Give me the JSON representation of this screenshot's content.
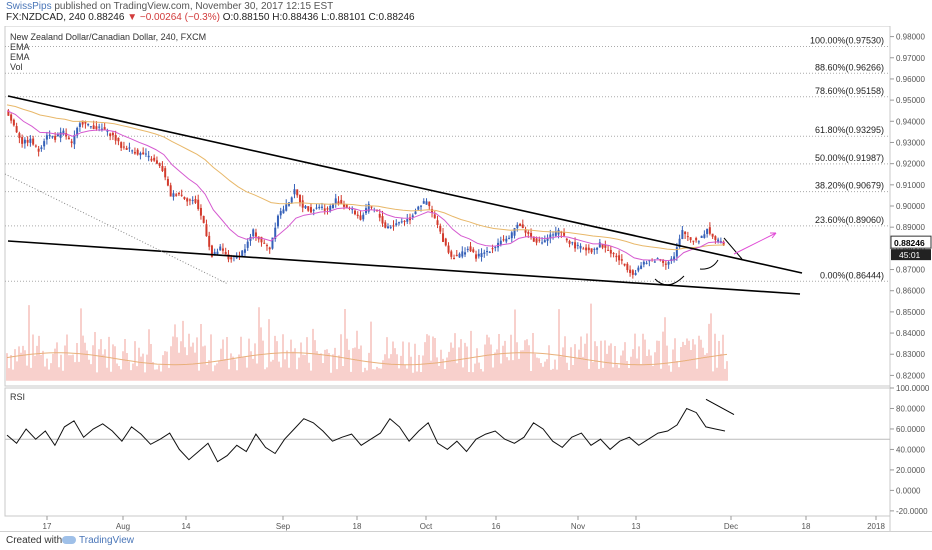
{
  "header": {
    "author": "SwissPips",
    "published": "published on TradingView.com, November 30, 2017 12:15 EST",
    "symbol": "FX:NZDCAD, 240",
    "last": "0.88246",
    "change": "−0.00264 (−0.3%)",
    "open": "O:0.88150",
    "high": "H:0.88436",
    "low": "L:0.88101",
    "close": "C:0.88246",
    "change_color": "#d23b3b"
  },
  "legend": {
    "title": "New Zealand Dollar/Canadian Dollar, 240, FXCM",
    "ema1": "EMA",
    "ema2": "EMA",
    "vol": "Vol"
  },
  "footer": {
    "made_with": "Created with",
    "brand": "TradingView"
  },
  "chart_data": [
    {
      "type": "candlestick",
      "title": "New Zealand Dollar/Canadian Dollar, 240, FXCM",
      "x_ticks": [
        "17",
        "Aug",
        "14",
        "Sep",
        "18",
        "Oct",
        "16",
        "Nov",
        "13",
        "Dec",
        "18",
        "2018"
      ],
      "y_ticks": [
        "0.98000",
        "0.97000",
        "0.96000",
        "0.95000",
        "0.94000",
        "0.93000",
        "0.92000",
        "0.91000",
        "0.90000",
        "0.89000",
        "0.88000",
        "0.87000",
        "0.86000",
        "0.85000",
        "0.84000",
        "0.83000",
        "0.82000"
      ],
      "ylim": [
        0.815,
        0.985
      ],
      "last_price": "0.88246",
      "countdown": "45:01",
      "fib_levels": [
        {
          "label": "100.00%(0.97530)",
          "value": 0.9753
        },
        {
          "label": "88.60%(0.96266)",
          "value": 0.96266
        },
        {
          "label": "78.60%(0.95158)",
          "value": 0.95158
        },
        {
          "label": "61.80%(0.93295)",
          "value": 0.93295
        },
        {
          "label": "50.00%(0.91987)",
          "value": 0.91987
        },
        {
          "label": "38.20%(0.90679)",
          "value": 0.90679
        },
        {
          "label": "23.60%(0.89060)",
          "value": 0.8906
        },
        {
          "label": "0.00%(0.86444)",
          "value": 0.86444
        }
      ],
      "price_path": [
        [
          0,
          0.945
        ],
        [
          1,
          0.938
        ],
        [
          2,
          0.93
        ],
        [
          3,
          0.931
        ],
        [
          4,
          0.926
        ],
        [
          5,
          0.934
        ],
        [
          6,
          0.932
        ],
        [
          7,
          0.935
        ],
        [
          8,
          0.929
        ],
        [
          9,
          0.94
        ],
        [
          10,
          0.938
        ],
        [
          11,
          0.937
        ],
        [
          12,
          0.936
        ],
        [
          13,
          0.933
        ],
        [
          14,
          0.928
        ],
        [
          15,
          0.927
        ],
        [
          16,
          0.925
        ],
        [
          17,
          0.924
        ],
        [
          18,
          0.921
        ],
        [
          19,
          0.917
        ],
        [
          20,
          0.905
        ],
        [
          21,
          0.906
        ],
        [
          22,
          0.903
        ],
        [
          23,
          0.902
        ],
        [
          24,
          0.892
        ],
        [
          25,
          0.876
        ],
        [
          26,
          0.88
        ],
        [
          27,
          0.875
        ],
        [
          28,
          0.876
        ],
        [
          29,
          0.88
        ],
        [
          30,
          0.888
        ],
        [
          31,
          0.883
        ],
        [
          32,
          0.88
        ],
        [
          33,
          0.896
        ],
        [
          34,
          0.9
        ],
        [
          35,
          0.907
        ],
        [
          36,
          0.9
        ],
        [
          37,
          0.898
        ],
        [
          38,
          0.9
        ],
        [
          39,
          0.898
        ],
        [
          40,
          0.903
        ],
        [
          41,
          0.9
        ],
        [
          42,
          0.898
        ],
        [
          43,
          0.894
        ],
        [
          44,
          0.9
        ],
        [
          45,
          0.897
        ],
        [
          46,
          0.89
        ],
        [
          47,
          0.891
        ],
        [
          48,
          0.893
        ],
        [
          49,
          0.894
        ],
        [
          50,
          0.9
        ],
        [
          51,
          0.902
        ],
        [
          52,
          0.894
        ],
        [
          53,
          0.884
        ],
        [
          54,
          0.876
        ],
        [
          55,
          0.877
        ],
        [
          56,
          0.88
        ],
        [
          57,
          0.876
        ],
        [
          58,
          0.878
        ],
        [
          59,
          0.88
        ],
        [
          60,
          0.884
        ],
        [
          61,
          0.884
        ],
        [
          62,
          0.892
        ],
        [
          63,
          0.888
        ],
        [
          64,
          0.884
        ],
        [
          65,
          0.883
        ],
        [
          66,
          0.886
        ],
        [
          67,
          0.888
        ],
        [
          68,
          0.884
        ],
        [
          69,
          0.881
        ],
        [
          70,
          0.88
        ],
        [
          71,
          0.879
        ],
        [
          72,
          0.882
        ],
        [
          73,
          0.879
        ],
        [
          74,
          0.876
        ],
        [
          75,
          0.872
        ],
        [
          76,
          0.868
        ],
        [
          77,
          0.872
        ],
        [
          78,
          0.874
        ],
        [
          79,
          0.875
        ],
        [
          80,
          0.873
        ],
        [
          81,
          0.876
        ],
        [
          82,
          0.888
        ],
        [
          83,
          0.884
        ],
        [
          84,
          0.884
        ],
        [
          85,
          0.889
        ],
        [
          86,
          0.884
        ],
        [
          87,
          0.882
        ]
      ],
      "volume_hint": "Vol",
      "trendlines": "descending channel with upper and lower boundaries; breakout arrow"
    },
    {
      "type": "line",
      "title": "RSI",
      "y_ticks": [
        "100.0000",
        "80.0000",
        "60.0000",
        "40.0000",
        "20.0000",
        "0.0000",
        "-20.0000"
      ],
      "ylim": [
        -25,
        100
      ],
      "reference_line": 50,
      "values": [
        54,
        46,
        60,
        50,
        58,
        44,
        62,
        68,
        52,
        60,
        65,
        58,
        48,
        62,
        55,
        45,
        50,
        56,
        40,
        30,
        38,
        46,
        28,
        34,
        44,
        38,
        55,
        42,
        36,
        50,
        60,
        70,
        66,
        58,
        48,
        52,
        55,
        44,
        50,
        56,
        70,
        62,
        48,
        58,
        66,
        46,
        40,
        48,
        38,
        50,
        55,
        58,
        50,
        46,
        52,
        66,
        60,
        48,
        42,
        52,
        56,
        44,
        50,
        40,
        48,
        52,
        44,
        50,
        56,
        58,
        64,
        80,
        76,
        62,
        60,
        58
      ]
    }
  ]
}
